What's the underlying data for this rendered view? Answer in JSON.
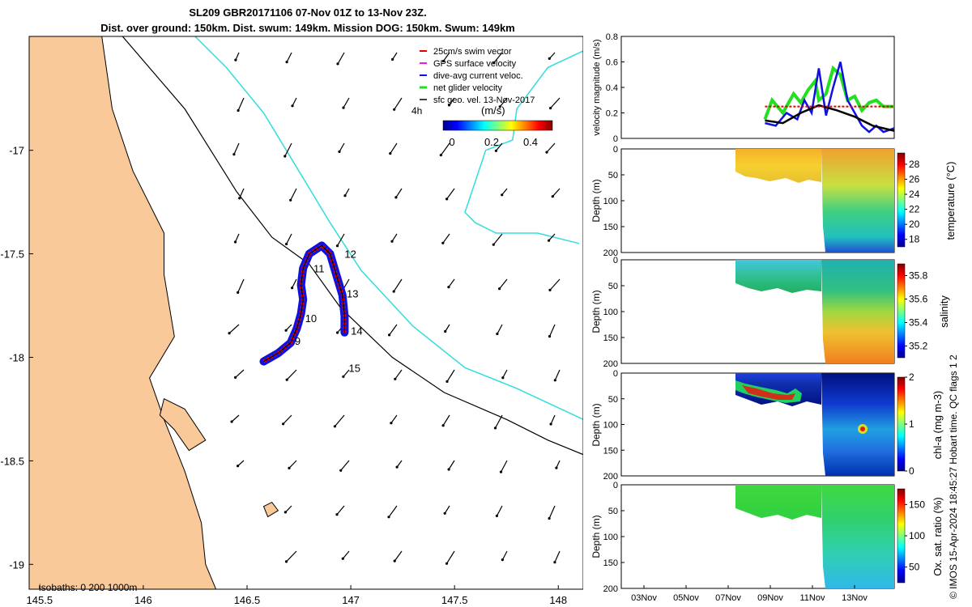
{
  "title": {
    "line1": "SL209 GBR20171106 07-Nov 01Z to 13-Nov 23Z.",
    "line2": "Dist. over ground: 150km. Dist. swum: 149km. Mission DOG: 150km. Swum: 149km"
  },
  "credit": "© IMOS 15-Apr-2024 18:45:27 Hobart time. QC flags 1  2",
  "colors": {
    "land": "#f9c99a",
    "coast": "#000000",
    "isobath200": "#000000",
    "isobath1000": "#33dddd",
    "swim_vector": "#e00000",
    "gps_velocity": "#e020e0",
    "dive_avg": "#1010e0",
    "net_glider": "#20e020",
    "sfc_geo": "#000000"
  },
  "chart_data": [
    {
      "id": "map",
      "type": "map",
      "xlim": [
        145.45,
        148.12
      ],
      "ylim": [
        -19.12,
        -16.45
      ],
      "xticks": [
        "145.5",
        "146",
        "146.5",
        "147",
        "147.5",
        "148"
      ],
      "yticks": [
        "-17",
        "-17.5",
        "-18",
        "-18.5",
        "-19"
      ],
      "xtick_values": [
        145.5,
        146,
        146.5,
        147,
        147.5,
        148
      ],
      "ytick_values": [
        -17,
        -17.5,
        -18,
        -18.5,
        -19
      ],
      "legend": {
        "items": [
          "25cm/s swim vector",
          "GPS surface velocity",
          "dive-avg current veloc.",
          "net glider velocity",
          "sfc geo. vel. 13-Nov-2017"
        ],
        "lag_label": "4h",
        "colorbar_label": "(m/s)",
        "colorbar_ticks": [
          "0",
          "0.2",
          "0.4"
        ]
      },
      "isobath_label": "isobaths: 0   200  1000m",
      "day_labels": [
        {
          "text": "9",
          "lon": 146.73,
          "lat": -17.94
        },
        {
          "text": "10",
          "lon": 146.78,
          "lat": -17.83
        },
        {
          "text": "11",
          "lon": 146.82,
          "lat": -17.59
        },
        {
          "text": "12",
          "lon": 146.97,
          "lat": -17.52
        },
        {
          "text": "13",
          "lon": 146.98,
          "lat": -17.71
        },
        {
          "text": "14",
          "lon": 147.0,
          "lat": -17.89
        },
        {
          "text": "15",
          "lon": 146.99,
          "lat": -18.07
        }
      ],
      "glider_track": [
        [
          146.58,
          -18.02
        ],
        [
          146.65,
          -17.98
        ],
        [
          146.71,
          -17.93
        ],
        [
          146.74,
          -17.86
        ],
        [
          146.76,
          -17.79
        ],
        [
          146.77,
          -17.72
        ],
        [
          146.76,
          -17.65
        ],
        [
          146.77,
          -17.57
        ],
        [
          146.8,
          -17.5
        ],
        [
          146.86,
          -17.46
        ],
        [
          146.9,
          -17.5
        ],
        [
          146.93,
          -17.6
        ],
        [
          146.96,
          -17.7
        ],
        [
          146.97,
          -17.8
        ],
        [
          146.97,
          -17.88
        ]
      ],
      "isobath_200": [
        [
          145.9,
          -16.45
        ],
        [
          146.2,
          -16.8
        ],
        [
          146.45,
          -17.2
        ],
        [
          146.62,
          -17.42
        ],
        [
          146.8,
          -17.55
        ],
        [
          146.95,
          -17.76
        ],
        [
          147.2,
          -18.0
        ],
        [
          147.45,
          -18.17
        ],
        [
          147.75,
          -18.3
        ],
        [
          147.95,
          -18.4
        ],
        [
          148.12,
          -18.47
        ]
      ],
      "isobath_1000": [
        [
          146.25,
          -16.45
        ],
        [
          146.4,
          -16.6
        ],
        [
          146.58,
          -16.82
        ],
        [
          146.75,
          -17.1
        ],
        [
          146.9,
          -17.35
        ],
        [
          147.05,
          -17.58
        ],
        [
          147.3,
          -17.85
        ],
        [
          147.55,
          -18.05
        ],
        [
          147.8,
          -18.15
        ],
        [
          148.12,
          -18.3
        ]
      ],
      "isobath_1000_east": [
        [
          148.12,
          -16.52
        ],
        [
          147.95,
          -16.6
        ],
        [
          147.8,
          -16.8
        ],
        [
          147.78,
          -16.95
        ],
        [
          147.65,
          -17.0
        ],
        [
          147.6,
          -17.15
        ],
        [
          147.55,
          -17.3
        ],
        [
          147.6,
          -17.35
        ],
        [
          147.7,
          -17.4
        ],
        [
          147.9,
          -17.4
        ],
        [
          148.1,
          -17.45
        ]
      ],
      "coastline": [
        [
          145.45,
          -16.45
        ],
        [
          145.8,
          -16.45
        ],
        [
          145.85,
          -16.8
        ],
        [
          145.95,
          -17.1
        ],
        [
          146.1,
          -17.4
        ],
        [
          146.1,
          -17.6
        ],
        [
          146.15,
          -17.9
        ],
        [
          146.03,
          -18.1
        ],
        [
          146.1,
          -18.3
        ],
        [
          146.2,
          -18.55
        ],
        [
          146.28,
          -18.8
        ],
        [
          146.3,
          -19.0
        ],
        [
          146.35,
          -19.12
        ],
        [
          145.45,
          -19.12
        ]
      ],
      "hinchinbrook": [
        [
          146.1,
          -18.2
        ],
        [
          146.2,
          -18.25
        ],
        [
          146.3,
          -18.4
        ],
        [
          146.22,
          -18.45
        ],
        [
          146.15,
          -18.35
        ],
        [
          146.08,
          -18.28
        ]
      ],
      "palm_island": [
        [
          146.58,
          -18.72
        ],
        [
          146.62,
          -18.7
        ],
        [
          146.65,
          -18.74
        ],
        [
          146.6,
          -18.77
        ]
      ]
    },
    {
      "id": "velocity",
      "type": "line",
      "ylabel": "velocity magnitude (m/s)",
      "ylim": [
        0,
        0.8
      ],
      "yticks": [
        "0",
        "0.2",
        "0.4",
        "0.6",
        "0.8"
      ],
      "xlim": [
        0,
        7.6
      ],
      "series": [
        {
          "name": "net glider velocity",
          "color": "#20e020",
          "x": [
            4.0,
            4.2,
            4.5,
            4.8,
            5.0,
            5.2,
            5.4,
            5.5,
            5.7,
            5.9,
            6.1,
            6.3,
            6.5,
            6.7,
            6.9,
            7.1,
            7.3,
            7.6
          ],
          "values": [
            0.15,
            0.3,
            0.2,
            0.35,
            0.28,
            0.38,
            0.45,
            0.3,
            0.35,
            0.55,
            0.5,
            0.3,
            0.33,
            0.22,
            0.28,
            0.3,
            0.25,
            0.25
          ]
        },
        {
          "name": "dive-avg current veloc.",
          "color": "#1010e0",
          "x": [
            4.0,
            4.3,
            4.6,
            4.9,
            5.1,
            5.3,
            5.5,
            5.7,
            5.9,
            6.1,
            6.3,
            6.5,
            6.7,
            6.9,
            7.1,
            7.3,
            7.6
          ],
          "values": [
            0.12,
            0.1,
            0.2,
            0.15,
            0.3,
            0.2,
            0.55,
            0.18,
            0.4,
            0.6,
            0.3,
            0.2,
            0.1,
            0.05,
            0.1,
            0.05,
            0.08
          ]
        },
        {
          "name": "sfc geo. vel.",
          "color": "#000000",
          "x": [
            4.0,
            4.5,
            5.0,
            5.5,
            6.0,
            6.5,
            7.0,
            7.6
          ],
          "values": [
            0.14,
            0.12,
            0.2,
            0.26,
            0.22,
            0.17,
            0.1,
            0.06
          ]
        },
        {
          "name": "swim speed",
          "color": "#e00000",
          "x": [
            4.0,
            7.6
          ],
          "values": [
            0.25,
            0.25
          ]
        }
      ]
    },
    {
      "id": "temperature",
      "type": "heatmap",
      "ylabel": "Depth (m)",
      "cblabel": "temperature (°C)",
      "ylim": [
        0,
        200
      ],
      "yticks": [
        "0",
        "50",
        "100",
        "150",
        "200"
      ],
      "clim": [
        17,
        29.5
      ],
      "cbticks": [
        "18",
        "20",
        "22",
        "24",
        "26",
        "28"
      ],
      "cbtick_values": [
        18,
        20,
        22,
        24,
        26,
        28
      ]
    },
    {
      "id": "salinity",
      "type": "heatmap",
      "ylabel": "Depth (m)",
      "cblabel": "salinity",
      "ylim": [
        0,
        200
      ],
      "yticks": [
        "0",
        "50",
        "100",
        "150",
        "200"
      ],
      "clim": [
        35.1,
        35.9
      ],
      "cbticks": [
        "35.2",
        "35.4",
        "35.6",
        "35.8"
      ],
      "cbtick_values": [
        35.2,
        35.4,
        35.6,
        35.8
      ]
    },
    {
      "id": "chla",
      "type": "heatmap",
      "ylabel": "Depth (m)",
      "cblabel": "chl-a (mg m-3)",
      "ylim": [
        0,
        200
      ],
      "yticks": [
        "0",
        "50",
        "100",
        "150",
        "200"
      ],
      "clim": [
        0,
        2
      ],
      "cbticks": [
        "0",
        "1",
        "2"
      ],
      "cbtick_values": [
        0,
        1,
        2
      ]
    },
    {
      "id": "oxygen",
      "type": "heatmap",
      "ylabel": "Depth (m)",
      "cblabel": "Ox. sat. ratio (%)",
      "ylim": [
        0,
        200
      ],
      "yticks": [
        "0",
        "50",
        "100",
        "150",
        "200"
      ],
      "clim": [
        25,
        175
      ],
      "cbticks": [
        "50",
        "100",
        "150"
      ],
      "cbtick_values": [
        50,
        100,
        150
      ],
      "xticks": [
        "03Nov",
        "05Nov",
        "07Nov",
        "09Nov",
        "11Nov",
        "13Nov"
      ]
    }
  ]
}
